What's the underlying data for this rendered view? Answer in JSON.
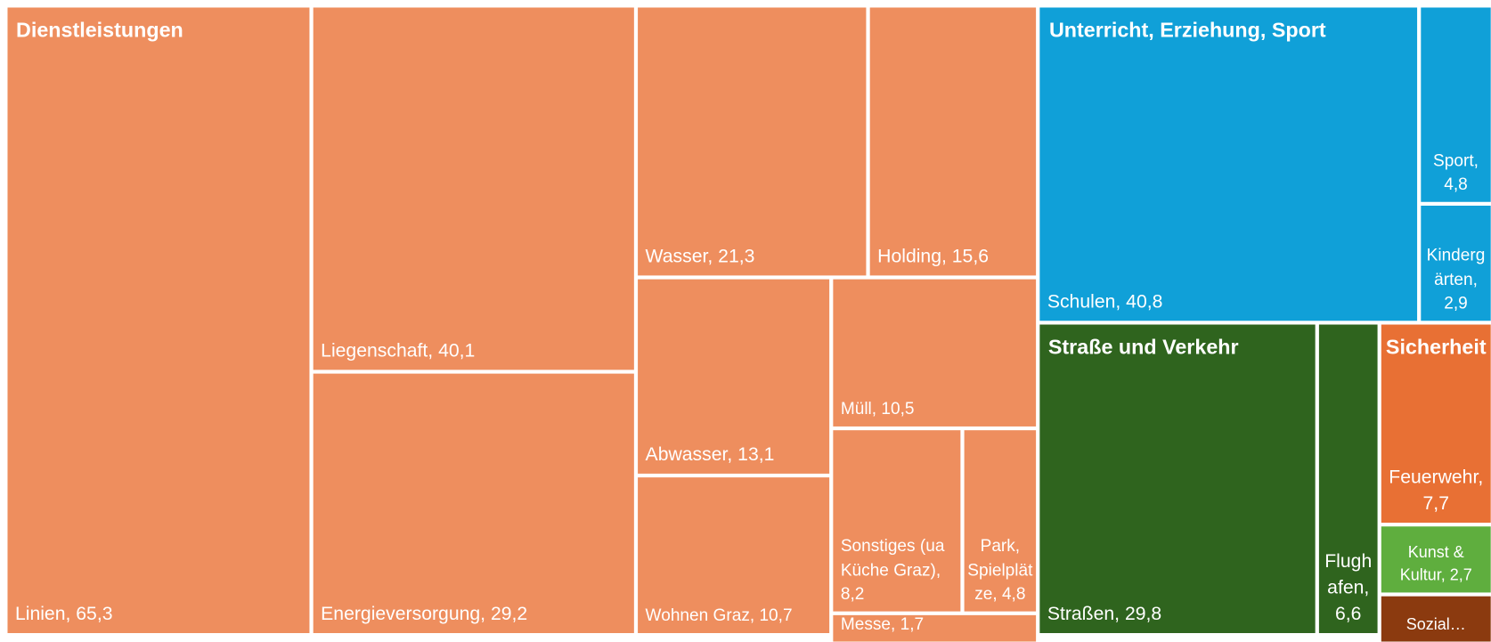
{
  "chart_data": {
    "type": "treemap",
    "groups": [
      {
        "name": "Dienstleistungen",
        "color": "#ee8e5e",
        "items": [
          {
            "label": "Linien, 65,3",
            "value": 65.3
          },
          {
            "label": "Liegenschaft, 40,1",
            "value": 40.1
          },
          {
            "label": "Energieversorgung, 29,2",
            "value": 29.2
          },
          {
            "label": "Wasser, 21,3",
            "value": 21.3
          },
          {
            "label": "Holding, 15,6",
            "value": 15.6
          },
          {
            "label": "Abwasser, 13,1",
            "value": 13.1
          },
          {
            "label": "Wohnen Graz, 10,7",
            "value": 10.7
          },
          {
            "label": "Müll, 10,5",
            "value": 10.5
          },
          {
            "label": "Sonstiges (ua Küche Graz), 8,2",
            "value": 8.2
          },
          {
            "label": "Park, Spielplätze, 4,8",
            "value": 4.8
          },
          {
            "label": "Messe, 1,7",
            "value": 1.7
          }
        ]
      },
      {
        "name": "Unterricht, Erziehung, Sport",
        "color": "#10a0d8",
        "items": [
          {
            "label": "Schulen, 40,8",
            "value": 40.8
          },
          {
            "label": "Sport, 4,8",
            "value": 4.8
          },
          {
            "label": "Kindergärten, 2,9",
            "value": 2.9
          }
        ]
      },
      {
        "name": "Straße und Verkehr",
        "color": "#2f641e",
        "items": [
          {
            "label": "Straßen, 29,8",
            "value": 29.8
          },
          {
            "label": "Flughafen, 6,6",
            "value": 6.6
          }
        ]
      },
      {
        "name": "Sicherheit",
        "color": "#e87034",
        "items": [
          {
            "label": "Feuerwehr, 7,7",
            "value": 7.7
          }
        ]
      },
      {
        "name": "Kunst & Kultur",
        "color": "#5fae3e",
        "items": [
          {
            "label": "Kunst & Kultur, 2,7",
            "value": 2.7
          }
        ]
      },
      {
        "name": "Sozial…",
        "color": "#8b3a0f",
        "items": [
          {
            "label": "Sozial…",
            "value": 1.5
          }
        ]
      }
    ]
  }
}
